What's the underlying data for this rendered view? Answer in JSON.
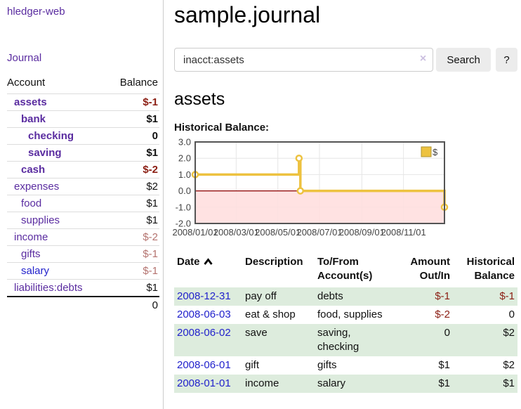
{
  "app": {
    "brand": "hledger-web"
  },
  "sidebar": {
    "journal_link": "Journal",
    "accounts": {
      "col_account": "Account",
      "col_balance": "Balance",
      "rows": [
        {
          "account": "assets",
          "balance": "$-1",
          "depth": 1,
          "bold": true,
          "negative": "strong"
        },
        {
          "account": "bank",
          "balance": "$1",
          "depth": 2,
          "bold": true
        },
        {
          "account": "checking",
          "balance": "0",
          "depth": 3,
          "bold": true
        },
        {
          "account": "saving",
          "balance": "$1",
          "depth": 3,
          "bold": true
        },
        {
          "account": "cash",
          "balance": "$-2",
          "depth": 2,
          "bold": true,
          "negative": "strong"
        },
        {
          "account": "expenses",
          "balance": "$2",
          "depth": 1
        },
        {
          "account": "food",
          "balance": "$1",
          "depth": 2
        },
        {
          "account": "supplies",
          "balance": "$1",
          "depth": 2
        },
        {
          "account": "income",
          "balance": "$-2",
          "depth": 1,
          "negative": "muted"
        },
        {
          "account": "gifts",
          "balance": "$-1",
          "depth": 2,
          "negative": "muted"
        },
        {
          "account": "salary",
          "balance": "$-1",
          "depth": 2,
          "negative": "muted",
          "link_state": "unvisited"
        },
        {
          "account": "liabilities:debts",
          "balance": "$1",
          "depth": 1
        }
      ],
      "total": "0"
    }
  },
  "main": {
    "title": "sample.journal",
    "search": {
      "query": "inacct:assets",
      "clear_icon": "×",
      "search_button": "Search",
      "help_button": "?"
    },
    "account_heading": "assets",
    "chart_title": "Historical Balance:"
  },
  "chart_data": {
    "type": "line",
    "step": true,
    "title": "Historical Balance:",
    "series": [
      {
        "name": "$",
        "color": "#edc240",
        "points": [
          [
            "2008-01-01",
            1
          ],
          [
            "2008-06-01",
            2
          ],
          [
            "2008-06-03",
            0
          ],
          [
            "2008-12-31",
            -1
          ]
        ]
      }
    ],
    "x_ticks": [
      "2008/01/01",
      "2008/03/01",
      "2008/05/01",
      "2008/07/01",
      "2008/09/01",
      "2008/11/01"
    ],
    "y_ticks": [
      3.0,
      2.0,
      1.0,
      0.0,
      -1.0,
      -2.0
    ],
    "ylim": [
      -2,
      3
    ],
    "grid": true,
    "legend": {
      "label": "$",
      "position": "top-right"
    },
    "negative_region_color": "#ffdddd",
    "zero_line_color": "#8b0000",
    "border_color": "#545454",
    "gridline_color": "#e6e6e6"
  },
  "register": {
    "headers": {
      "date": "Date",
      "description": "Description",
      "accounts": "To/From Account(s)",
      "amount": "Amount Out/In",
      "balance": "Historical Balance"
    },
    "sort": "date-ascending",
    "rows": [
      {
        "date": "2008-12-31",
        "description": "pay off",
        "accounts": "debts",
        "amount": "$-1",
        "balance": "$-1",
        "amount_negative": true,
        "balance_negative": true
      },
      {
        "date": "2008-06-03",
        "description": "eat & shop",
        "accounts": "food, supplies",
        "amount": "$-2",
        "balance": "0",
        "amount_negative": true
      },
      {
        "date": "2008-06-02",
        "description": "save",
        "accounts": "saving, checking",
        "amount": "0",
        "balance": "$2"
      },
      {
        "date": "2008-06-01",
        "description": "gift",
        "accounts": "gifts",
        "amount": "$1",
        "balance": "$2"
      },
      {
        "date": "2008-01-01",
        "description": "income",
        "accounts": "salary",
        "amount": "$1",
        "balance": "$1"
      }
    ]
  },
  "theme": {
    "link_purple": "#5a2ca0",
    "link_blue": "#2222cc",
    "negative_red": "#8b1e13",
    "negative_muted": "#b4736f",
    "row_stripe_green": "#ddecdd"
  }
}
